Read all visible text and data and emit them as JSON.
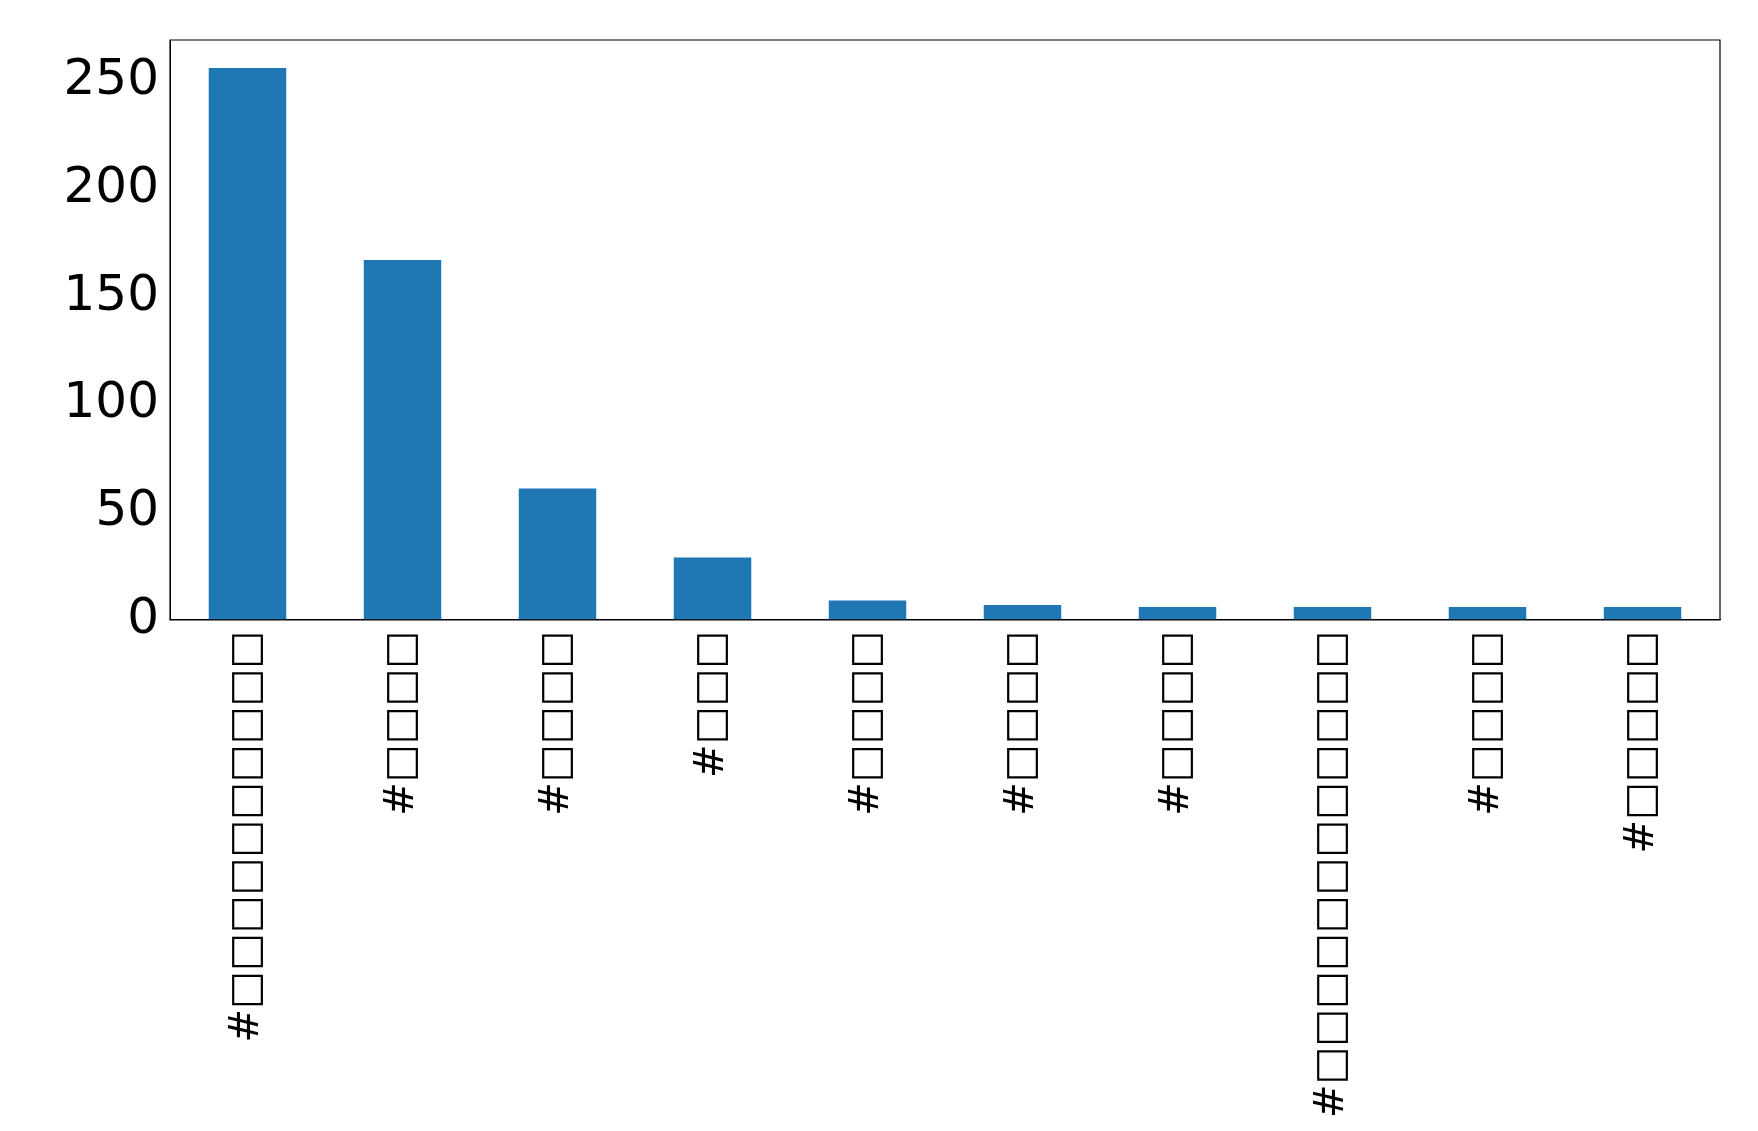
{
  "chart_data": {
    "type": "bar",
    "categories": [
      "#□□□□□□□□□□",
      "#□□□□",
      "#□□□□",
      "#□□□",
      "#□□□□",
      "#□□□□",
      "#□□□□",
      "#□□□□□□□□□□□□",
      "#□□□□",
      "#□□□□□"
    ],
    "values": [
      256,
      167,
      61,
      29,
      9,
      7,
      6,
      6,
      6,
      6
    ],
    "color": "#1f77b4",
    "ylim": [
      0,
      269
    ],
    "yticks": [
      0,
      50,
      100,
      150,
      200,
      250
    ],
    "grid": false,
    "legend": false
  }
}
